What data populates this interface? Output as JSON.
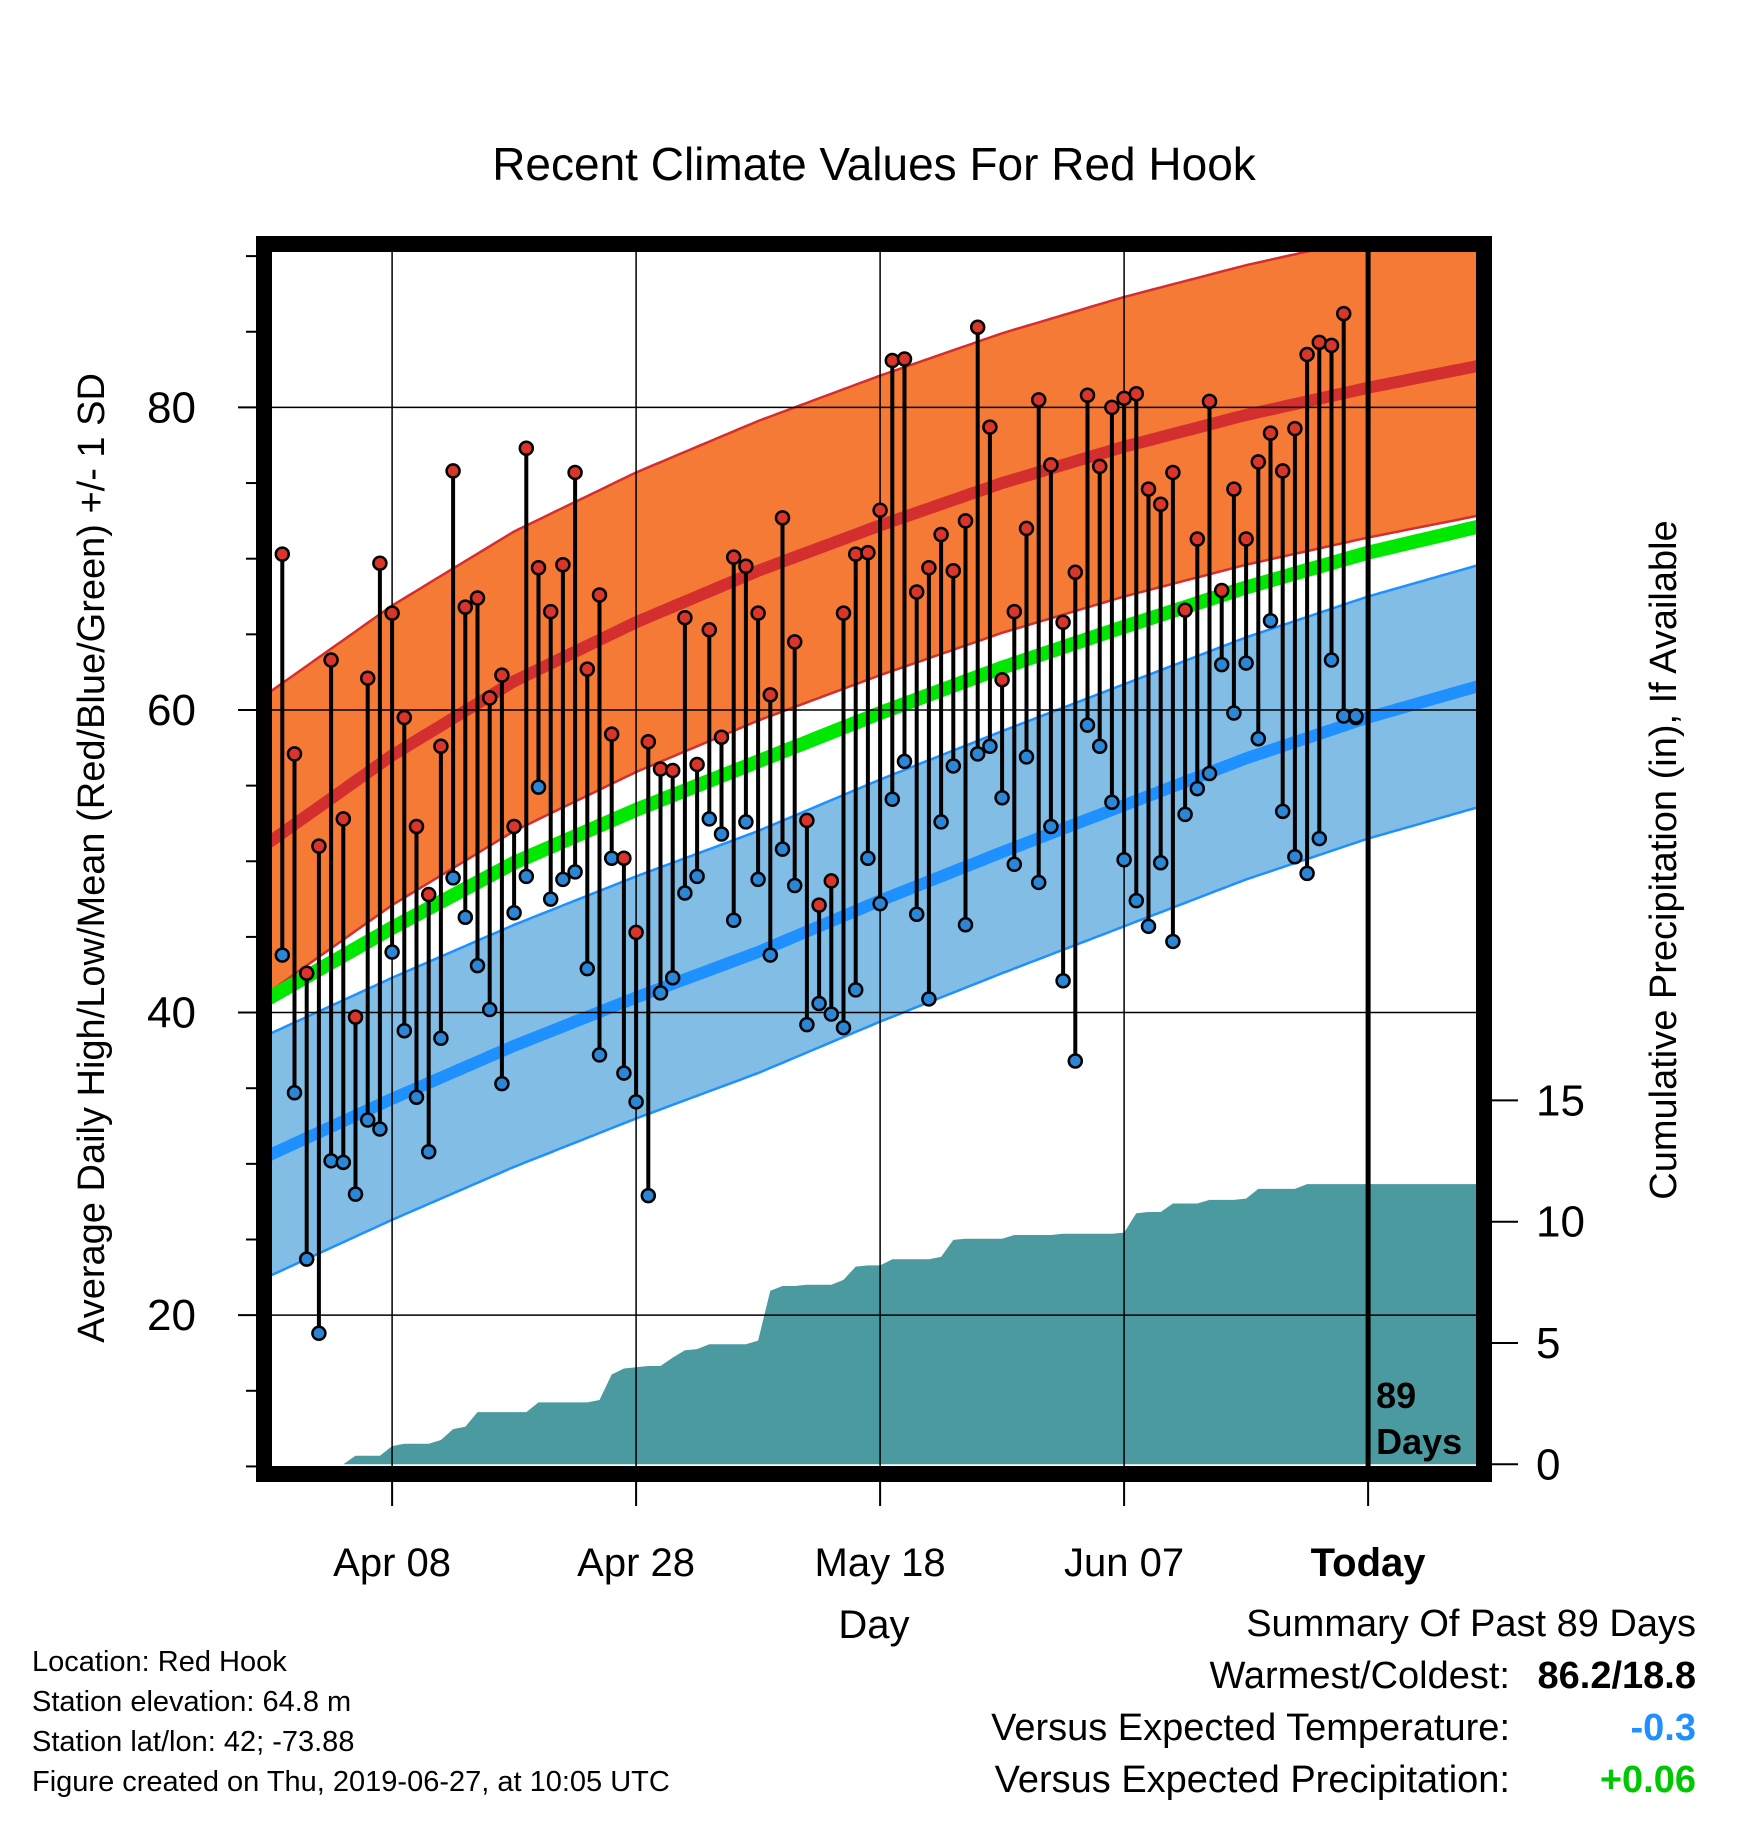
{
  "chart_data": {
    "type": "line",
    "title": "Recent Climate Values For Red Hook",
    "xlabel": "Day",
    "ylabel": "Average Daily High/Low/Mean (Red/Blue/Green) +/- 1 SD",
    "y2label": "Cumulative Precipitation (in), If Available",
    "xlim": [
      -0.5,
      99.5
    ],
    "ylim": [
      9.5,
      90.8
    ],
    "y2lim": [
      -0.4,
      50.3
    ],
    "x_ticks": [
      {
        "day": 10,
        "label": "Apr 08"
      },
      {
        "day": 30,
        "label": "Apr 28"
      },
      {
        "day": 50,
        "label": "May 18"
      },
      {
        "day": 70,
        "label": "Jun 07"
      },
      {
        "day": 90,
        "label": "Today"
      }
    ],
    "y_ticks": [
      20,
      40,
      60,
      80
    ],
    "y2_ticks": [
      0,
      5,
      10,
      15
    ],
    "today_marker": {
      "day": 90,
      "label_line1": "89",
      "label_line2": "Days"
    },
    "grid": true,
    "colors": {
      "high_band": "#f47a35",
      "high_mean": "#d32f2f",
      "low_band": "#82bde6",
      "low_mean": "#1e90ff",
      "mean": "#00e800",
      "precip": "#4a9aa0",
      "high_point": "#d9362b",
      "low_point": "#2c86d6"
    },
    "climatology": {
      "days": [
        0,
        10,
        20,
        30,
        40,
        50,
        60,
        70,
        80,
        90,
        100
      ],
      "high_mean": [
        51.3,
        57.0,
        61.9,
        65.8,
        69.2,
        72.2,
        75.0,
        77.4,
        79.5,
        81.3,
        82.9
      ],
      "high_sd": 9.9,
      "low_mean": [
        30.6,
        34.3,
        37.8,
        41.0,
        44.0,
        47.4,
        50.6,
        53.7,
        56.8,
        59.5,
        61.8
      ],
      "low_sd": 8.0,
      "mean": [
        41.0,
        45.6,
        49.9,
        53.4,
        56.6,
        59.8,
        62.8,
        65.5,
        68.1,
        70.4,
        72.3
      ]
    },
    "series": [
      {
        "name": "Daily High",
        "x": [
          1,
          2,
          3,
          4,
          5,
          6,
          7,
          8,
          9,
          10,
          11,
          12,
          13,
          14,
          15,
          16,
          17,
          18,
          19,
          20,
          21,
          22,
          23,
          24,
          25,
          26,
          27,
          28,
          29,
          30,
          31,
          32,
          33,
          34,
          35,
          36,
          37,
          38,
          39,
          40,
          41,
          42,
          43,
          44,
          45,
          46,
          47,
          48,
          49,
          50,
          51,
          52,
          53,
          54,
          55,
          56,
          57,
          58,
          59,
          60,
          61,
          62,
          63,
          64,
          65,
          66,
          67,
          68,
          69,
          70,
          71,
          72,
          73,
          74,
          75,
          76,
          77,
          78,
          79,
          80,
          81,
          82,
          83,
          84,
          85,
          86,
          87,
          88,
          89
        ],
        "values": [
          70.3,
          57.1,
          42.6,
          51.0,
          63.3,
          52.8,
          39.7,
          62.1,
          69.7,
          66.4,
          59.5,
          52.3,
          47.8,
          57.6,
          75.8,
          66.8,
          67.4,
          60.8,
          62.3,
          52.3,
          77.3,
          69.4,
          66.5,
          69.6,
          75.7,
          62.7,
          67.6,
          58.4,
          50.2,
          45.3,
          57.9,
          56.1,
          56.0,
          66.1,
          56.4,
          65.3,
          58.2,
          70.1,
          69.5,
          66.4,
          61.0,
          72.7,
          64.5,
          52.7,
          47.1,
          48.7,
          66.4,
          70.3,
          70.4,
          73.2,
          83.1,
          83.2,
          67.8,
          69.4,
          71.6,
          69.2,
          72.5,
          85.3,
          78.7,
          62.0,
          66.5,
          72.0,
          80.5,
          76.2,
          65.8,
          69.1,
          80.8,
          76.1,
          80.0,
          80.6,
          80.9,
          74.6,
          73.6,
          75.7,
          66.6,
          71.3,
          80.4,
          67.9,
          74.6,
          71.3,
          76.4,
          78.3,
          75.8,
          78.6,
          83.5,
          84.3,
          84.1,
          86.2,
          59.5
        ]
      },
      {
        "name": "Daily Low",
        "x": [
          1,
          2,
          3,
          4,
          5,
          6,
          7,
          8,
          9,
          10,
          11,
          12,
          13,
          14,
          15,
          16,
          17,
          18,
          19,
          20,
          21,
          22,
          23,
          24,
          25,
          26,
          27,
          28,
          29,
          30,
          31,
          32,
          33,
          34,
          35,
          36,
          37,
          38,
          39,
          40,
          41,
          42,
          43,
          44,
          45,
          46,
          47,
          48,
          49,
          50,
          51,
          52,
          53,
          54,
          55,
          56,
          57,
          58,
          59,
          60,
          61,
          62,
          63,
          64,
          65,
          66,
          67,
          68,
          69,
          70,
          71,
          72,
          73,
          74,
          75,
          76,
          77,
          78,
          79,
          80,
          81,
          82,
          83,
          84,
          85,
          86,
          87,
          88,
          89
        ],
        "values": [
          43.8,
          34.7,
          23.7,
          18.8,
          30.2,
          30.1,
          28.0,
          32.9,
          32.3,
          44.0,
          38.8,
          34.4,
          30.8,
          38.3,
          48.9,
          46.3,
          43.1,
          40.2,
          35.3,
          46.6,
          49.0,
          54.9,
          47.5,
          48.8,
          49.3,
          42.9,
          37.2,
          50.2,
          36.0,
          34.1,
          27.9,
          41.3,
          42.3,
          47.9,
          49.0,
          52.8,
          51.8,
          46.1,
          52.6,
          48.8,
          43.8,
          50.8,
          48.4,
          39.2,
          40.6,
          39.9,
          39.0,
          41.5,
          50.2,
          47.2,
          54.1,
          56.6,
          46.5,
          40.9,
          52.6,
          56.3,
          45.8,
          57.1,
          57.6,
          54.2,
          49.8,
          56.9,
          48.6,
          52.3,
          42.1,
          36.8,
          59.0,
          57.6,
          53.9,
          50.1,
          47.4,
          45.7,
          49.9,
          44.7,
          53.1,
          54.8,
          55.8,
          63.0,
          59.8,
          63.1,
          58.1,
          65.9,
          53.3,
          50.3,
          49.2,
          51.5,
          63.3,
          59.6,
          59.6
        ]
      },
      {
        "name": "Cumulative Precipitation",
        "x": [
          6,
          7,
          8,
          9,
          10,
          11,
          12,
          13,
          14,
          15,
          16,
          17,
          18,
          19,
          20,
          21,
          22,
          23,
          24,
          25,
          26,
          27,
          28,
          29,
          30,
          31,
          32,
          33,
          34,
          35,
          36,
          37,
          38,
          39,
          40,
          41,
          42,
          43,
          44,
          45,
          46,
          47,
          48,
          49,
          50,
          51,
          52,
          53,
          54,
          55,
          56,
          57,
          58,
          59,
          60,
          61,
          62,
          63,
          64,
          65,
          66,
          67,
          68,
          69,
          70,
          71,
          72,
          73,
          74,
          75,
          76,
          77,
          78,
          79,
          80,
          81,
          82,
          83,
          84,
          85,
          86,
          87,
          88,
          89,
          90,
          91,
          92,
          93,
          94,
          95,
          96,
          97,
          98,
          99
        ],
        "values": [
          0.0,
          0.35,
          0.35,
          0.35,
          0.75,
          0.85,
          0.85,
          0.85,
          1.0,
          1.45,
          1.55,
          2.15,
          2.15,
          2.15,
          2.15,
          2.15,
          2.55,
          2.55,
          2.55,
          2.55,
          2.55,
          2.65,
          3.7,
          3.95,
          4.0,
          4.05,
          4.05,
          4.4,
          4.7,
          4.75,
          4.95,
          4.95,
          4.95,
          4.95,
          5.1,
          7.15,
          7.35,
          7.35,
          7.4,
          7.4,
          7.4,
          7.6,
          8.15,
          8.2,
          8.2,
          8.45,
          8.45,
          8.45,
          8.45,
          8.55,
          9.25,
          9.3,
          9.3,
          9.3,
          9.3,
          9.45,
          9.45,
          9.45,
          9.45,
          9.5,
          9.5,
          9.5,
          9.5,
          9.5,
          9.55,
          10.35,
          10.4,
          10.4,
          10.75,
          10.75,
          10.75,
          10.9,
          10.9,
          10.9,
          10.95,
          11.35,
          11.35,
          11.35,
          11.35,
          11.55,
          11.55,
          11.55,
          11.55,
          11.55,
          11.55,
          11.55,
          11.55,
          11.55,
          11.55,
          11.55,
          11.55,
          11.55,
          11.55,
          11.55
        ]
      }
    ]
  },
  "info": {
    "location": "Location: Red Hook",
    "elevation": "Station elevation: 64.8 m",
    "latlon": "Station lat/lon: 42; -73.88",
    "created": "Figure created on Thu, 2019-06-27, at 10:05 UTC"
  },
  "summary": {
    "title": "Summary Of Past 89 Days",
    "warmest_label": "Warmest/Coldest:",
    "warmest_value": "86.2/18.8",
    "temp_label": "Versus Expected Temperature:",
    "temp_value": "-0.3",
    "temp_color": "#1e90ff",
    "precip_label": "Versus Expected Precipitation:",
    "precip_value": "+0.06",
    "precip_color": "#00c800"
  }
}
